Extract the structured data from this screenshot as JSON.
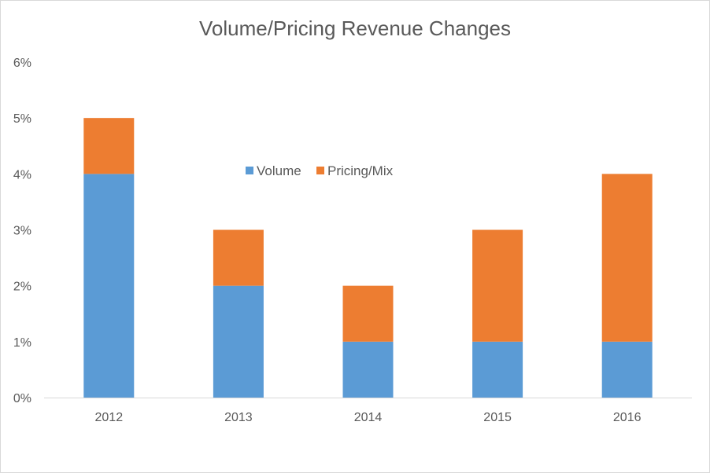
{
  "chart_data": {
    "type": "bar",
    "stacked": true,
    "title": "Volume/Pricing Revenue Changes",
    "categories": [
      "2012",
      "2013",
      "2014",
      "2015",
      "2016"
    ],
    "series": [
      {
        "name": "Volume",
        "color": "#5b9bd5",
        "values": [
          4,
          2,
          1,
          1,
          1
        ]
      },
      {
        "name": "Pricing/Mix",
        "color": "#ed7d31",
        "values": [
          1,
          1,
          1,
          2,
          3
        ]
      }
    ],
    "ylim": [
      0,
      6
    ],
    "y_ticks": [
      "0%",
      "1%",
      "2%",
      "3%",
      "4%",
      "5%",
      "6%"
    ],
    "grid": false,
    "legend": {
      "position": "center-top"
    },
    "xlabel": "",
    "ylabel": ""
  }
}
